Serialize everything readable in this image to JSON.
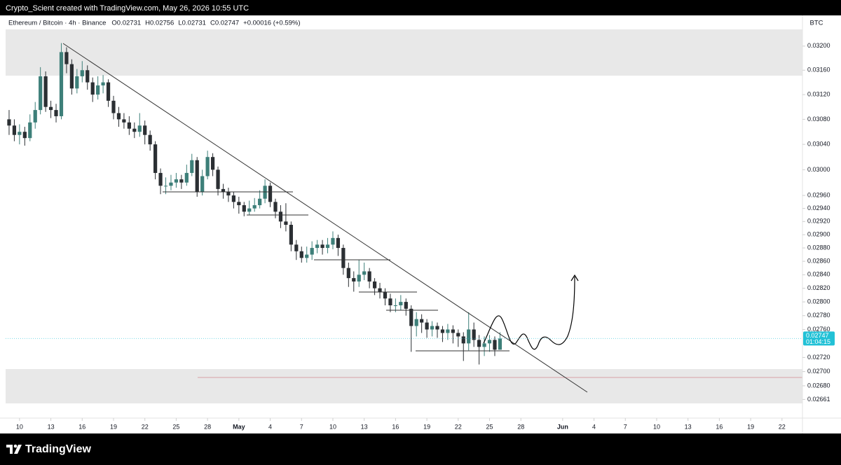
{
  "header": {
    "caption": "Crypto_Scient created with TradingView.com, May 26, 2026 10:55 UTC"
  },
  "footer": {
    "brand": "TradingView"
  },
  "chart_data": {
    "type": "candlestick",
    "title": "Ethereum / Bitcoin · 4h · Binance",
    "ohlc_labels": [
      "O0.02731",
      "H0.02756",
      "L0.02731",
      "C0.02747",
      "+0.00016 (+0.59%)"
    ],
    "currency": "BTC",
    "last_label": "0.02747",
    "countdown": "01:04:15",
    "log": true,
    "up_color": "#3d7f79",
    "down_color": "#2b2f33",
    "last_color": "#22c1d6",
    "x": [
      "2026-04-09T00:00",
      "2026-04-09T12:00",
      "2026-04-10T00:00",
      "2026-04-10T12:00",
      "2026-04-11T00:00",
      "2026-04-11T12:00",
      "2026-04-12T00:00",
      "2026-04-12T12:00",
      "2026-04-13T00:00",
      "2026-04-13T12:00",
      "2026-04-14T00:00",
      "2026-04-14T12:00",
      "2026-04-15T00:00",
      "2026-04-15T12:00",
      "2026-04-16T00:00",
      "2026-04-16T12:00",
      "2026-04-17T00:00",
      "2026-04-17T12:00",
      "2026-04-18T00:00",
      "2026-04-18T12:00",
      "2026-04-19T00:00",
      "2026-04-19T12:00",
      "2026-04-20T00:00",
      "2026-04-20T12:00",
      "2026-04-21T00:00",
      "2026-04-21T12:00",
      "2026-04-22T00:00",
      "2026-04-22T12:00",
      "2026-04-23T00:00",
      "2026-04-23T12:00",
      "2026-04-24T00:00",
      "2026-04-24T12:00",
      "2026-04-25T00:00",
      "2026-04-25T12:00",
      "2026-04-26T00:00",
      "2026-04-26T12:00",
      "2026-04-27T00:00",
      "2026-04-27T12:00",
      "2026-04-28T00:00",
      "2026-04-28T12:00",
      "2026-04-29T00:00",
      "2026-04-29T12:00",
      "2026-04-30T00:00",
      "2026-04-30T12:00",
      "2026-05-01T00:00",
      "2026-05-01T12:00",
      "2026-05-02T00:00",
      "2026-05-02T12:00",
      "2026-05-03T00:00",
      "2026-05-03T12:00",
      "2026-05-04T00:00",
      "2026-05-04T12:00",
      "2026-05-05T00:00",
      "2026-05-05T12:00",
      "2026-05-06T00:00",
      "2026-05-06T12:00",
      "2026-05-07T00:00",
      "2026-05-07T12:00",
      "2026-05-08T00:00",
      "2026-05-08T12:00",
      "2026-05-09T00:00",
      "2026-05-09T12:00",
      "2026-05-10T00:00",
      "2026-05-10T12:00",
      "2026-05-11T00:00",
      "2026-05-11T12:00",
      "2026-05-12T00:00",
      "2026-05-12T12:00",
      "2026-05-13T00:00",
      "2026-05-13T12:00",
      "2026-05-14T00:00",
      "2026-05-14T12:00",
      "2026-05-15T00:00",
      "2026-05-15T12:00",
      "2026-05-16T00:00",
      "2026-05-16T12:00",
      "2026-05-17T00:00",
      "2026-05-17T12:00",
      "2026-05-18T00:00",
      "2026-05-18T12:00",
      "2026-05-19T00:00",
      "2026-05-19T12:00",
      "2026-05-20T00:00",
      "2026-05-20T12:00",
      "2026-05-21T00:00",
      "2026-05-21T12:00",
      "2026-05-22T00:00",
      "2026-05-22T12:00",
      "2026-05-23T00:00",
      "2026-05-23T12:00",
      "2026-05-24T00:00",
      "2026-05-24T12:00",
      "2026-05-25T00:00",
      "2026-05-25T12:00",
      "2026-05-26T00:00"
    ],
    "open": [
      0.0308,
      0.0307,
      0.03055,
      0.0306,
      0.0305,
      0.03075,
      0.03095,
      0.0315,
      0.031,
      0.03095,
      0.03085,
      0.0319,
      0.0317,
      0.0313,
      0.0315,
      0.0316,
      0.0314,
      0.0312,
      0.03135,
      0.0314,
      0.0311,
      0.0309,
      0.0308,
      0.03075,
      0.03065,
      0.0306,
      0.0307,
      0.03055,
      0.0304,
      0.02995,
      0.02975,
      0.02975,
      0.0298,
      0.02985,
      0.0298,
      0.02995,
      0.03015,
      0.02965,
      0.0299,
      0.0302,
      0.03,
      0.0297,
      0.02965,
      0.0296,
      0.0295,
      0.02945,
      0.02935,
      0.0294,
      0.02945,
      0.02955,
      0.02975,
      0.0295,
      0.02935,
      0.0292,
      0.02915,
      0.02885,
      0.02875,
      0.02865,
      0.0287,
      0.0288,
      0.02885,
      0.0288,
      0.02885,
      0.02895,
      0.0288,
      0.0285,
      0.02835,
      0.0283,
      0.0284,
      0.02845,
      0.0283,
      0.0282,
      0.02815,
      0.02805,
      0.02795,
      0.02795,
      0.028,
      0.0279,
      0.02765,
      0.02775,
      0.0277,
      0.0276,
      0.02765,
      0.0276,
      0.02755,
      0.0276,
      0.02755,
      0.0275,
      0.0274,
      0.0276,
      0.02745,
      0.02735,
      0.0274,
      0.02745,
      0.02731
    ],
    "high": [
      0.03095,
      0.0308,
      0.03072,
      0.03068,
      0.03088,
      0.03108,
      0.03165,
      0.03158,
      0.0311,
      0.03105,
      0.03205,
      0.03198,
      0.03178,
      0.03162,
      0.03175,
      0.03168,
      0.03148,
      0.0315,
      0.03152,
      0.03145,
      0.03118,
      0.031,
      0.0309,
      0.03085,
      0.03075,
      0.0309,
      0.03078,
      0.03062,
      0.03045,
      0.03002,
      0.02988,
      0.02992,
      0.02995,
      0.02992,
      0.03008,
      0.03025,
      0.0302,
      0.03,
      0.0303,
      0.03026,
      0.03005,
      0.02978,
      0.02972,
      0.02966,
      0.02958,
      0.0295,
      0.02952,
      0.02956,
      0.02968,
      0.02985,
      0.0298,
      0.02955,
      0.02945,
      0.02948,
      0.0292,
      0.02892,
      0.02882,
      0.02882,
      0.0289,
      0.02892,
      0.02892,
      0.02895,
      0.02905,
      0.029,
      0.02885,
      0.02858,
      0.02845,
      0.02862,
      0.02858,
      0.0285,
      0.02835,
      0.02828,
      0.0282,
      0.02812,
      0.02805,
      0.0281,
      0.02805,
      0.02795,
      0.02785,
      0.02782,
      0.02775,
      0.02772,
      0.0277,
      0.02765,
      0.02768,
      0.02766,
      0.0276,
      0.02756,
      0.02785,
      0.0277,
      0.02752,
      0.0275,
      0.02752,
      0.0275,
      0.02756
    ],
    "low": [
      0.03055,
      0.03045,
      0.0304,
      0.03038,
      0.03045,
      0.03065,
      0.03088,
      0.03092,
      0.03082,
      0.03075,
      0.0308,
      0.03155,
      0.0312,
      0.03122,
      0.0314,
      0.03128,
      0.03108,
      0.03112,
      0.03122,
      0.031,
      0.0308,
      0.03068,
      0.03065,
      0.03055,
      0.0305,
      0.03052,
      0.0304,
      0.0303,
      0.02985,
      0.02962,
      0.02962,
      0.02968,
      0.02972,
      0.0297,
      0.02975,
      0.0299,
      0.02958,
      0.0296,
      0.02985,
      0.0299,
      0.0296,
      0.02955,
      0.0295,
      0.0294,
      0.02932,
      0.02928,
      0.0293,
      0.02935,
      0.0294,
      0.02948,
      0.02942,
      0.02925,
      0.0291,
      0.02905,
      0.02875,
      0.02862,
      0.02858,
      0.02858,
      0.02862,
      0.02872,
      0.0287,
      0.02872,
      0.02878,
      0.02868,
      0.0284,
      0.02822,
      0.02815,
      0.02822,
      0.02832,
      0.0282,
      0.0281,
      0.02805,
      0.02795,
      0.02785,
      0.02785,
      0.02788,
      0.0278,
      0.02728,
      0.0275,
      0.02755,
      0.02748,
      0.0275,
      0.02748,
      0.02742,
      0.02745,
      0.0274,
      0.02735,
      0.02715,
      0.0273,
      0.02735,
      0.0271,
      0.02722,
      0.02728,
      0.02722,
      0.02731
    ],
    "close": [
      0.0307,
      0.03055,
      0.0306,
      0.0305,
      0.03075,
      0.03095,
      0.0315,
      0.031,
      0.03095,
      0.03085,
      0.0319,
      0.0317,
      0.0313,
      0.0315,
      0.0316,
      0.0314,
      0.0312,
      0.03135,
      0.0314,
      0.0311,
      0.0309,
      0.0308,
      0.03075,
      0.03065,
      0.0306,
      0.0307,
      0.03055,
      0.0304,
      0.02995,
      0.02975,
      0.02975,
      0.0298,
      0.02985,
      0.0298,
      0.02995,
      0.03015,
      0.02965,
      0.0299,
      0.0302,
      0.03,
      0.0297,
      0.02965,
      0.0296,
      0.0295,
      0.02945,
      0.02935,
      0.0294,
      0.02945,
      0.02955,
      0.02975,
      0.0295,
      0.02935,
      0.0292,
      0.02915,
      0.02885,
      0.02875,
      0.02865,
      0.0287,
      0.0288,
      0.02885,
      0.0288,
      0.02885,
      0.02895,
      0.0288,
      0.0285,
      0.02835,
      0.0283,
      0.0284,
      0.02845,
      0.0283,
      0.0282,
      0.02815,
      0.02805,
      0.02795,
      0.02795,
      0.028,
      0.0279,
      0.02765,
      0.02775,
      0.0277,
      0.0276,
      0.02765,
      0.0276,
      0.02755,
      0.0276,
      0.02755,
      0.0275,
      0.0274,
      0.0276,
      0.02745,
      0.02735,
      0.0274,
      0.02745,
      0.02731,
      0.02747
    ],
    "xlim": [
      "2026-04-08T16:00",
      "2026-06-23T23:00"
    ],
    "xticks": [
      {
        "value": "2026-04-10T00:00",
        "label": "10"
      },
      {
        "value": "2026-04-13T00:00",
        "label": "13"
      },
      {
        "value": "2026-04-16T00:00",
        "label": "16"
      },
      {
        "value": "2026-04-19T00:00",
        "label": "19"
      },
      {
        "value": "2026-04-22T00:00",
        "label": "22"
      },
      {
        "value": "2026-04-25T00:00",
        "label": "25"
      },
      {
        "value": "2026-04-28T00:00",
        "label": "28"
      },
      {
        "value": "2026-05-01T00:00",
        "label": "May"
      },
      {
        "value": "2026-05-04T00:00",
        "label": "4"
      },
      {
        "value": "2026-05-07T00:00",
        "label": "7"
      },
      {
        "value": "2026-05-10T00:00",
        "label": "10"
      },
      {
        "value": "2026-05-13T00:00",
        "label": "13"
      },
      {
        "value": "2026-05-16T00:00",
        "label": "16"
      },
      {
        "value": "2026-05-19T00:00",
        "label": "19"
      },
      {
        "value": "2026-05-22T00:00",
        "label": "22"
      },
      {
        "value": "2026-05-25T00:00",
        "label": "25"
      },
      {
        "value": "2026-05-28T00:00",
        "label": "28"
      },
      {
        "value": "2026-06-01T00:00",
        "label": "Jun"
      },
      {
        "value": "2026-06-04T00:00",
        "label": "4"
      },
      {
        "value": "2026-06-07T00:00",
        "label": "7"
      },
      {
        "value": "2026-06-10T00:00",
        "label": "10"
      },
      {
        "value": "2026-06-13T00:00",
        "label": "13"
      },
      {
        "value": "2026-06-16T00:00",
        "label": "16"
      },
      {
        "value": "2026-06-19T00:00",
        "label": "19"
      },
      {
        "value": "2026-06-22T00:00",
        "label": "22"
      }
    ],
    "ylim": [
      0.02642,
      0.03228
    ],
    "yticks": [
      {
        "value": 0.032,
        "label": "0.03200"
      },
      {
        "value": 0.0316,
        "label": "0.03160"
      },
      {
        "value": 0.0312,
        "label": "0.03120"
      },
      {
        "value": 0.0308,
        "label": "0.03080"
      },
      {
        "value": 0.0304,
        "label": "0.03040"
      },
      {
        "value": 0.03,
        "label": "0.03000"
      },
      {
        "value": 0.0296,
        "label": "0.02960"
      },
      {
        "value": 0.0294,
        "label": "0.02940"
      },
      {
        "value": 0.0292,
        "label": "0.02920"
      },
      {
        "value": 0.029,
        "label": "0.02900"
      },
      {
        "value": 0.0288,
        "label": "0.02880"
      },
      {
        "value": 0.0286,
        "label": "0.02860"
      },
      {
        "value": 0.0284,
        "label": "0.02840"
      },
      {
        "value": 0.0282,
        "label": "0.02820"
      },
      {
        "value": 0.028,
        "label": "0.02800"
      },
      {
        "value": 0.0278,
        "label": "0.02780"
      },
      {
        "value": 0.0276,
        "label": "0.02760"
      },
      {
        "value": 0.0272,
        "label": "0.02720"
      },
      {
        "value": 0.027,
        "label": "0.02700"
      },
      {
        "value": 0.0268,
        "label": "0.02680"
      },
      {
        "value": 0.02661,
        "label": "0.02661"
      }
    ]
  }
}
